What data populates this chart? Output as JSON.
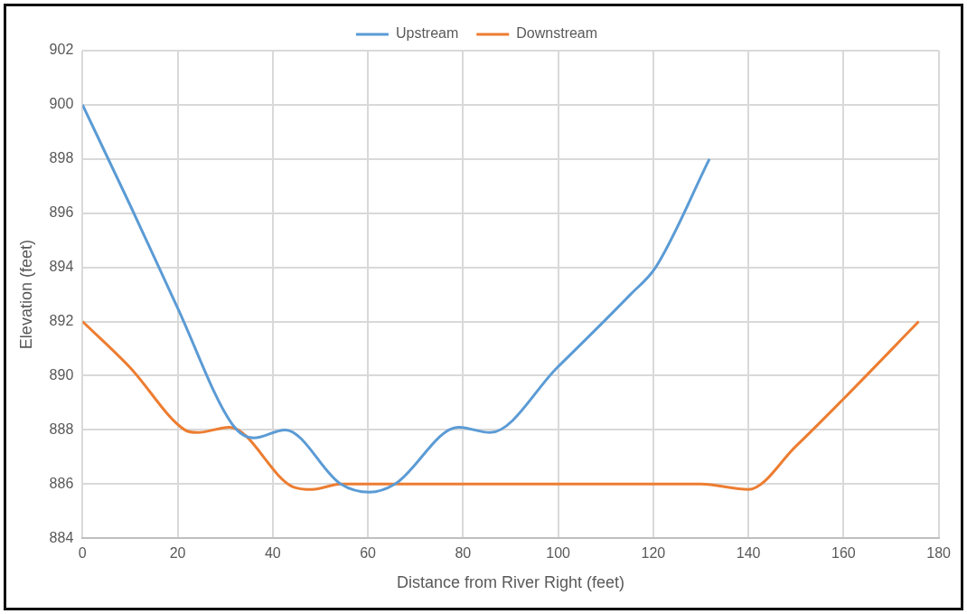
{
  "chart_data": {
    "type": "line",
    "xlabel": "Distance from River Right (feet)",
    "ylabel": "Elevation (feet)",
    "xlim": [
      0,
      180
    ],
    "xticks": [
      0,
      20,
      40,
      60,
      80,
      100,
      120,
      140,
      160,
      180
    ],
    "ylim": [
      884,
      902
    ],
    "yticks": [
      884,
      886,
      888,
      890,
      892,
      894,
      896,
      898,
      900,
      902
    ],
    "grid": true,
    "legend": "top",
    "marker": "none",
    "line_style": "solid",
    "series": [
      {
        "name": "Upstream",
        "color": "#5b9bd5",
        "x": [
          0,
          10,
          20,
          31.5,
          36,
          42.6,
          54.3,
          60.3,
          65.7,
          79,
          85.7,
          99.8,
          115.2,
          120.5,
          131.8
        ],
        "values": [
          900,
          896.3,
          892.5,
          888.2,
          887.7,
          888,
          886,
          885.7,
          886,
          888.1,
          887.9,
          890.3,
          893,
          894,
          898
        ]
      },
      {
        "name": "Downstream",
        "color": "#ed7d31",
        "x": [
          0,
          10,
          21.5,
          24.2,
          30.9,
          44.2,
          48.3,
          54.3,
          130,
          140,
          150,
          160.3,
          175.8
        ],
        "values": [
          892,
          890.3,
          888,
          887.9,
          888.1,
          885.9,
          885.8,
          886,
          886,
          885.8,
          887.4,
          889.2,
          892
        ]
      }
    ]
  }
}
